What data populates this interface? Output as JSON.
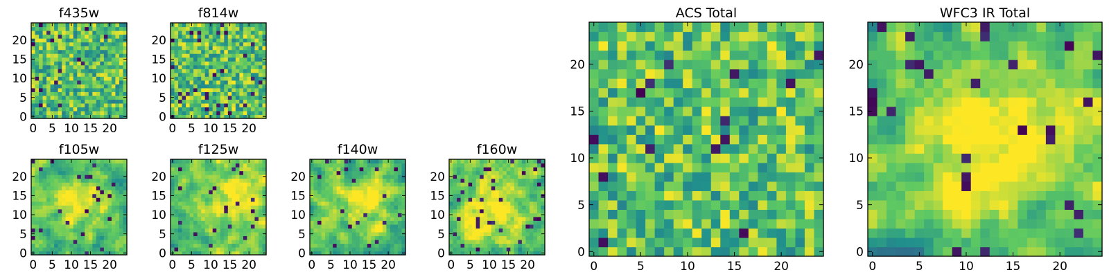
{
  "figure": {
    "background": "#ffffff",
    "colormap": [
      "#440154",
      "#3b528b",
      "#21918c",
      "#5ec962",
      "#fde725"
    ],
    "frame_color": "#000000"
  },
  "chart_data": [
    {
      "type": "heatmap",
      "id": "f435w",
      "title": "f435w",
      "grid_size": 25,
      "xlim": [
        -0.5,
        24.5
      ],
      "ylim": [
        -0.5,
        24.5
      ],
      "x_ticks": [
        0,
        5,
        10,
        15,
        20
      ],
      "y_ticks": [
        0,
        5,
        10,
        15,
        20
      ],
      "xlabel": "",
      "ylabel": "",
      "value_range": [
        0,
        1
      ],
      "typical_level": 0.7,
      "structure": "pixel-scale noise",
      "seed": 11,
      "noise_scale": 1,
      "dark_fraction": 0.04,
      "blob": null
    },
    {
      "type": "heatmap",
      "id": "f814w",
      "title": "f814w",
      "grid_size": 25,
      "xlim": [
        -0.5,
        24.5
      ],
      "ylim": [
        -0.5,
        24.5
      ],
      "x_ticks": [
        0,
        5,
        10,
        15,
        20
      ],
      "y_ticks": [
        0,
        5,
        10,
        15,
        20
      ],
      "xlabel": "",
      "ylabel": "",
      "value_range": [
        0,
        1
      ],
      "typical_level": 0.72,
      "structure": "pixel-scale noise",
      "seed": 23,
      "noise_scale": 1,
      "dark_fraction": 0.04,
      "blob": null
    },
    {
      "type": "heatmap",
      "id": "f105w",
      "title": "f105w",
      "grid_size": 25,
      "xlim": [
        -0.5,
        24.5
      ],
      "ylim": [
        -0.5,
        24.5
      ],
      "x_ticks": [
        0,
        5,
        10,
        15,
        20
      ],
      "y_ticks": [
        0,
        5,
        10,
        15,
        20
      ],
      "xlabel": "",
      "ylabel": "",
      "value_range": [
        0,
        1
      ],
      "typical_level": 0.68,
      "structure": "smooth with bright centre",
      "seed": 37,
      "noise_scale": 2,
      "dark_fraction": 0.04,
      "blob": {
        "x": 12,
        "y": 13,
        "r": 5
      }
    },
    {
      "type": "heatmap",
      "id": "f125w",
      "title": "f125w",
      "grid_size": 25,
      "xlim": [
        -0.5,
        24.5
      ],
      "ylim": [
        -0.5,
        24.5
      ],
      "x_ticks": [
        0,
        5,
        10,
        15,
        20
      ],
      "y_ticks": [
        0,
        5,
        10,
        15,
        20
      ],
      "xlabel": "",
      "ylabel": "",
      "value_range": [
        0,
        1
      ],
      "typical_level": 0.7,
      "structure": "smooth with bright diagonal",
      "seed": 41,
      "noise_scale": 2,
      "dark_fraction": 0.04,
      "blob": {
        "x": 16,
        "y": 14,
        "r": 6
      }
    },
    {
      "type": "heatmap",
      "id": "f140w",
      "title": "f140w",
      "grid_size": 25,
      "xlim": [
        -0.5,
        24.5
      ],
      "ylim": [
        -0.5,
        24.5
      ],
      "x_ticks": [
        0,
        5,
        10,
        15,
        20
      ],
      "y_ticks": [
        0,
        5,
        10,
        15,
        20
      ],
      "xlabel": "",
      "ylabel": "",
      "value_range": [
        0,
        1
      ],
      "typical_level": 0.7,
      "structure": "smooth with bright centre",
      "seed": 53,
      "noise_scale": 2,
      "dark_fraction": 0.04,
      "blob": {
        "x": 15,
        "y": 14,
        "r": 5
      }
    },
    {
      "type": "heatmap",
      "id": "f160w",
      "title": "f160w",
      "grid_size": 25,
      "xlim": [
        -0.5,
        24.5
      ],
      "ylim": [
        -0.5,
        24.5
      ],
      "x_ticks": [
        0,
        5,
        10,
        15,
        20
      ],
      "y_ticks": [
        0,
        5,
        10,
        15,
        20
      ],
      "xlabel": "",
      "ylabel": "",
      "value_range": [
        0,
        1
      ],
      "typical_level": 0.72,
      "structure": "smooth with bright centre",
      "seed": 67,
      "noise_scale": 2,
      "dark_fraction": 0.04,
      "blob": {
        "x": 10,
        "y": 12,
        "r": 6
      }
    },
    {
      "type": "heatmap",
      "id": "acs-total",
      "title": "ACS Total",
      "grid_size": 25,
      "xlim": [
        -0.5,
        24.5
      ],
      "ylim": [
        -0.5,
        24.5
      ],
      "x_ticks": [
        0,
        5,
        10,
        15,
        20
      ],
      "y_ticks": [
        0,
        5,
        10,
        15,
        20
      ],
      "xlabel": "",
      "ylabel": "",
      "value_range": [
        0,
        1
      ],
      "typical_level": 0.72,
      "structure": "pixel-scale noise",
      "seed": 79,
      "noise_scale": 1,
      "dark_fraction": 0.03,
      "blob": null
    },
    {
      "type": "heatmap",
      "id": "wfc3-ir-total",
      "title": "WFC3 IR Total",
      "grid_size": 25,
      "xlim": [
        -0.5,
        24.5
      ],
      "ylim": [
        -0.5,
        24.5
      ],
      "x_ticks": [
        0,
        5,
        10,
        15,
        20
      ],
      "y_ticks": [
        0,
        5,
        10,
        15,
        20
      ],
      "xlabel": "",
      "ylabel": "",
      "value_range": [
        0,
        1
      ],
      "typical_level": 0.7,
      "structure": "smooth with bright centre",
      "seed": 97,
      "noise_scale": 2,
      "dark_fraction": 0.05,
      "blob": {
        "x": 13,
        "y": 12,
        "r": 6
      }
    }
  ]
}
